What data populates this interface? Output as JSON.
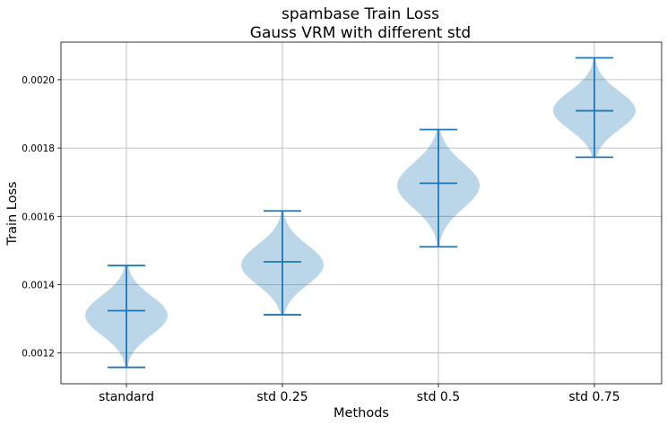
{
  "chart_data": {
    "type": "violin",
    "title": "spambase Train Loss",
    "subtitle": "Gauss VRM with different std",
    "xlabel": "Methods",
    "ylabel": "Train Loss",
    "ylim": [
      0.00111,
      0.00211
    ],
    "yticks": [
      0.0012,
      0.0014,
      0.0016,
      0.0018,
      0.002
    ],
    "ytick_labels": [
      "0.0012",
      "0.0014",
      "0.0016",
      "0.0018",
      "0.0020"
    ],
    "grid": true,
    "categories": [
      "standard",
      "std 0.25",
      "std 0.5",
      "std 0.75"
    ],
    "series": [
      {
        "category": "standard",
        "min": 0.001158,
        "max": 0.001456,
        "median": 0.001324,
        "peak": 0.00131
      },
      {
        "category": "std 0.25",
        "min": 0.001312,
        "max": 0.001616,
        "median": 0.001467,
        "peak": 0.001458
      },
      {
        "category": "std 0.5",
        "min": 0.001511,
        "max": 0.001854,
        "median": 0.001697,
        "peak": 0.00169
      },
      {
        "category": "std 0.75",
        "min": 0.001773,
        "max": 0.002064,
        "median": 0.001909,
        "peak": 0.00191
      }
    ],
    "colors": {
      "violin": "#1f77b4",
      "lines": "#1f77b4"
    }
  }
}
